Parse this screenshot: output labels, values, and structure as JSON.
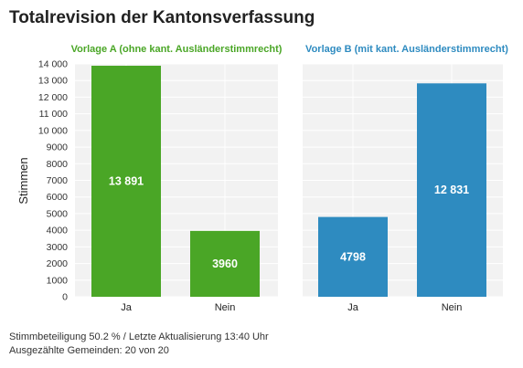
{
  "title": "Totalrevision der Kantonsverfassung",
  "footer": {
    "line1": "Stimmbeteiligung 50.2 % / Letzte Aktualisierung 13:40 Uhr",
    "line2": "Ausgezählte Gemeinden: 20 von 20"
  },
  "chart_data": [
    {
      "type": "bar",
      "title": "Vorlage A (ohne kant. Ausländerstimmrecht)",
      "title_color": "#4aa626",
      "bar_color": "#4aa626",
      "categories": [
        "Ja",
        "Nein"
      ],
      "values": [
        13891,
        3960
      ],
      "value_labels": [
        "13 891",
        "3960"
      ],
      "ylabel": "Stimmen",
      "ylim": [
        0,
        14000
      ],
      "yticks": [
        0,
        1000,
        2000,
        3000,
        4000,
        5000,
        6000,
        7000,
        8000,
        9000,
        10000,
        11000,
        12000,
        13000,
        14000
      ],
      "ytick_labels": [
        "0",
        "1000",
        "2000",
        "3000",
        "4000",
        "5000",
        "6000",
        "7000",
        "8000",
        "9000",
        "10 000",
        "11 000",
        "12 000",
        "13 000",
        "14 000"
      ],
      "grid": true
    },
    {
      "type": "bar",
      "title": "Vorlage B (mit kant. Ausländerstimmrecht)",
      "title_color": "#2e8bc0",
      "bar_color": "#2e8bc0",
      "categories": [
        "Ja",
        "Nein"
      ],
      "values": [
        4798,
        12831
      ],
      "value_labels": [
        "4798",
        "12 831"
      ],
      "ylim": [
        0,
        14000
      ],
      "grid": true
    }
  ]
}
